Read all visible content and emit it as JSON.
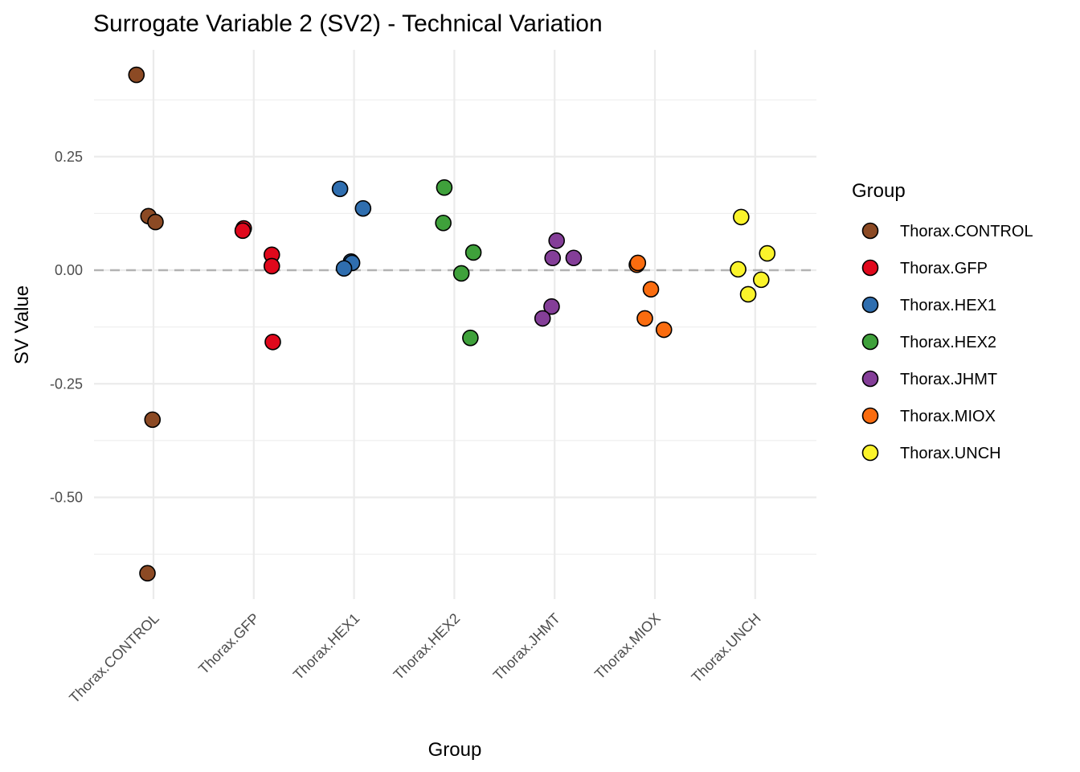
{
  "chart_data": {
    "type": "scatter",
    "title": "Surrogate Variable 2 (SV2) - Technical Variation",
    "xlabel": "Group",
    "ylabel": "SV Value",
    "ylim": [
      -0.72,
      0.47
    ],
    "yticks": [
      0.25,
      0.0,
      -0.25,
      -0.5
    ],
    "ytick_labels": [
      "0.25",
      "0.00",
      "-0.25",
      "-0.50"
    ],
    "y_minor_ticks": [
      0.375,
      0.125,
      -0.125,
      -0.375,
      -0.625
    ],
    "grid": true,
    "reference_line": {
      "y": 0,
      "style": "dashed",
      "color": "#b3b3b3"
    },
    "categories": [
      "Thorax.CONTROL",
      "Thorax.GFP",
      "Thorax.HEX1",
      "Thorax.HEX2",
      "Thorax.JHMT",
      "Thorax.MIOX",
      "Thorax.UNCH"
    ],
    "legend": {
      "title": "Group",
      "placement": "right",
      "entries": [
        "Thorax.CONTROL",
        "Thorax.GFP",
        "Thorax.HEX1",
        "Thorax.HEX2",
        "Thorax.JHMT",
        "Thorax.MIOX",
        "Thorax.UNCH"
      ]
    },
    "series": [
      {
        "name": "Thorax.CONTROL",
        "color": "#8C4A24",
        "values": [
          0.43,
          0.119,
          0.106,
          -0.329,
          -0.667
        ],
        "jitter": [
          -0.17,
          -0.05,
          0.02,
          -0.01,
          -0.06
        ]
      },
      {
        "name": "Thorax.GFP",
        "color": "#E0081C",
        "values": [
          0.092,
          0.087,
          0.034,
          0.009,
          -0.158
        ],
        "jitter": [
          -0.1,
          -0.11,
          0.18,
          0.18,
          0.19
        ]
      },
      {
        "name": "Thorax.HEX1",
        "color": "#2F6EAF",
        "values": [
          0.179,
          0.136,
          0.019,
          0.016,
          0.004
        ],
        "jitter": [
          -0.14,
          0.09,
          -0.03,
          -0.02,
          -0.1
        ]
      },
      {
        "name": "Thorax.HEX2",
        "color": "#3FA13B",
        "values": [
          0.182,
          0.104,
          0.039,
          -0.007,
          -0.149
        ],
        "jitter": [
          -0.1,
          -0.11,
          0.19,
          0.07,
          0.16
        ]
      },
      {
        "name": "Thorax.JHMT",
        "color": "#843E98",
        "values": [
          0.065,
          0.027,
          0.027,
          -0.08,
          -0.106
        ],
        "jitter": [
          0.02,
          -0.02,
          0.19,
          -0.03,
          -0.12
        ]
      },
      {
        "name": "Thorax.MIOX",
        "color": "#FA6C0F",
        "values": [
          0.012,
          0.016,
          -0.042,
          -0.106,
          -0.131
        ],
        "jitter": [
          -0.18,
          -0.17,
          -0.04,
          -0.1,
          0.09
        ]
      },
      {
        "name": "Thorax.UNCH",
        "color": "#FBF42B",
        "values": [
          0.117,
          0.037,
          0.002,
          -0.021,
          -0.053
        ],
        "jitter": [
          -0.14,
          0.12,
          -0.17,
          0.06,
          -0.07
        ]
      }
    ]
  }
}
